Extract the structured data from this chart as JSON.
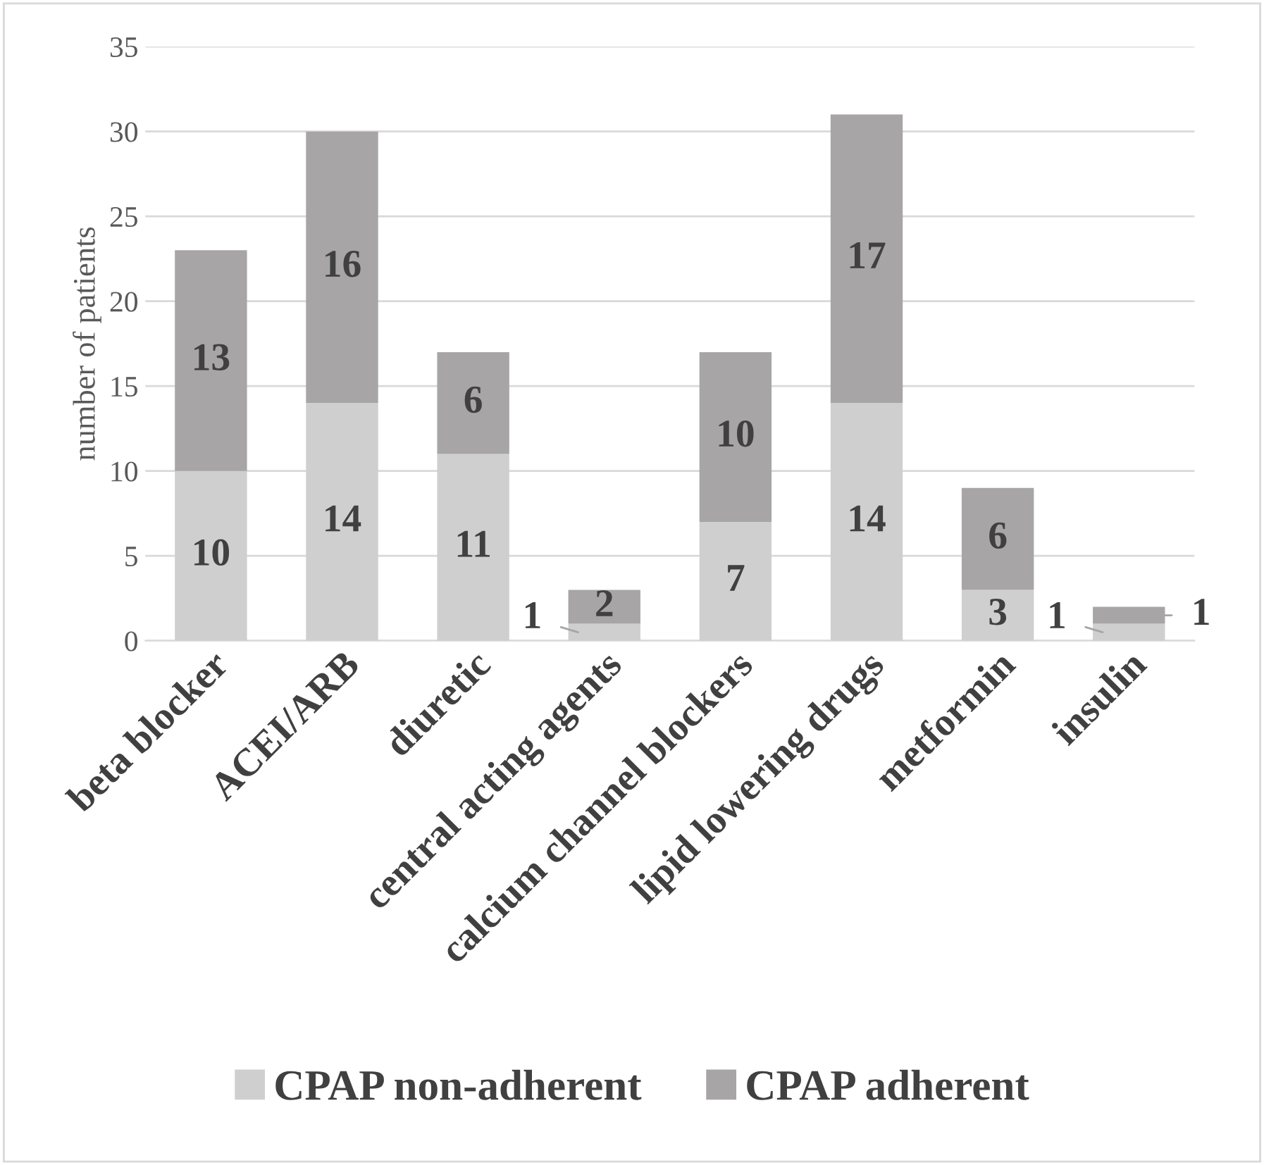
{
  "chart_data": {
    "type": "bar",
    "stacked": true,
    "ylabel": "number of patients",
    "categories": [
      "beta blocker",
      "ACEI/ARB",
      "diuretic",
      "central acting agents",
      "calcium channel blockers",
      "lipid lowering drugs",
      "metformin",
      "insulin"
    ],
    "series": [
      {
        "name": "CPAP non-adherent",
        "color": "#d0cfcf",
        "values": [
          10,
          14,
          11,
          1,
          7,
          14,
          3,
          1
        ]
      },
      {
        "name": "CPAP adherent",
        "color": "#a7a5a5",
        "values": [
          13,
          16,
          6,
          2,
          10,
          17,
          6,
          1
        ]
      }
    ],
    "ylim": [
      0,
      35
    ],
    "yticks": [
      0,
      5,
      10,
      15,
      20,
      25,
      30,
      35
    ],
    "grid": "y",
    "legend": "bottom",
    "data_labels": true
  }
}
